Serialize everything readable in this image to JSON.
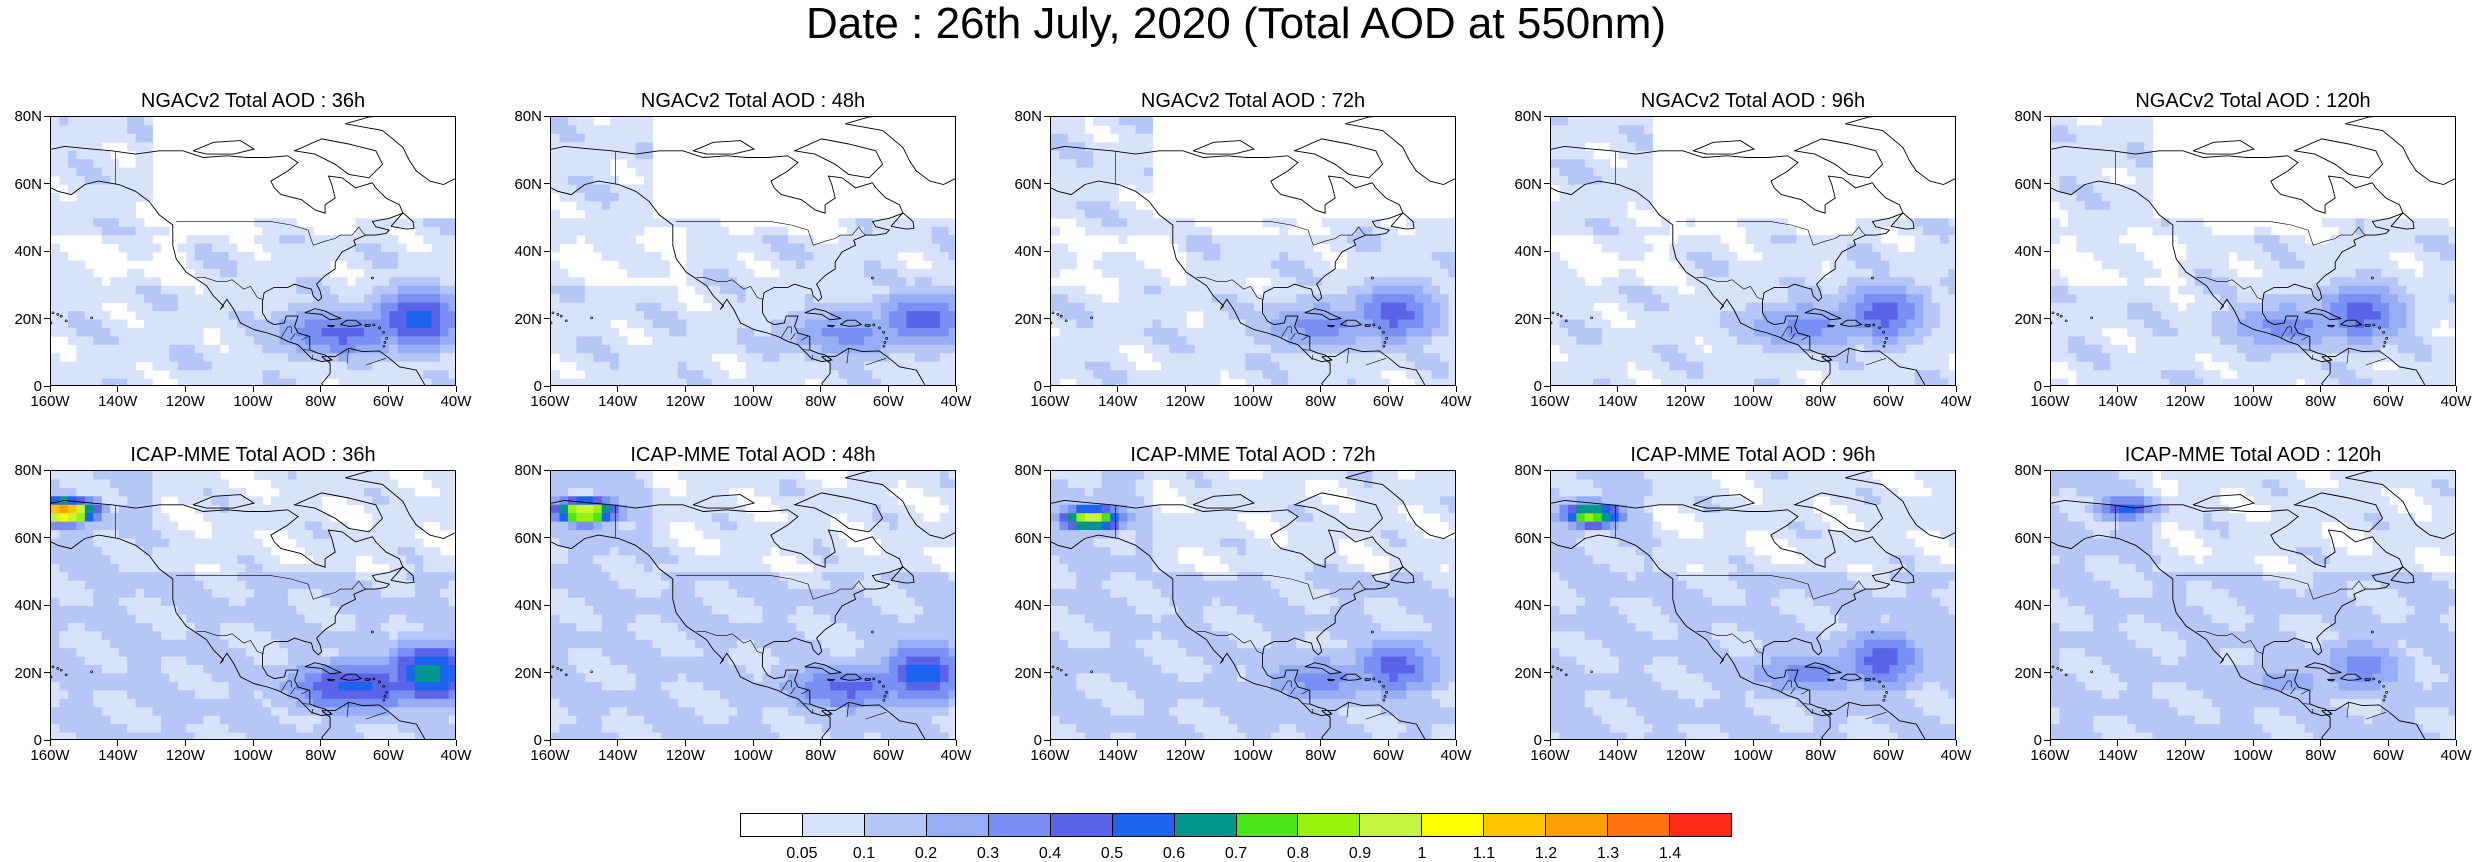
{
  "title": "Date : 26th July, 2020 (Total AOD at 550nm)",
  "panels": [
    {
      "title": "NGACv2 Total AOD : 36h",
      "model": "NGACv2",
      "lead": "36h",
      "hotspot_level": 6
    },
    {
      "title": "NGACv2 Total AOD : 48h",
      "model": "NGACv2",
      "lead": "48h",
      "hotspot_level": 5
    },
    {
      "title": "NGACv2 Total AOD : 72h",
      "model": "NGACv2",
      "lead": "72h",
      "hotspot_level": 5
    },
    {
      "title": "NGACv2 Total AOD : 96h",
      "model": "NGACv2",
      "lead": "96h",
      "hotspot_level": 5
    },
    {
      "title": "NGACv2 Total AOD : 120h",
      "model": "NGACv2",
      "lead": "120h",
      "hotspot_level": 5
    },
    {
      "title": "ICAP-MME Total AOD : 36h",
      "model": "ICAP-MME",
      "lead": "36h",
      "hotspot_level": 7
    },
    {
      "title": "ICAP-MME Total AOD : 48h",
      "model": "ICAP-MME",
      "lead": "48h",
      "hotspot_level": 6
    },
    {
      "title": "ICAP-MME Total AOD : 72h",
      "model": "ICAP-MME",
      "lead": "72h",
      "hotspot_level": 5
    },
    {
      "title": "ICAP-MME Total AOD : 96h",
      "model": "ICAP-MME",
      "lead": "96h",
      "hotspot_level": 5
    },
    {
      "title": "ICAP-MME Total AOD : 120h",
      "model": "ICAP-MME",
      "lead": "120h",
      "hotspot_level": 4
    }
  ],
  "axes": {
    "lat_labels": [
      "80N",
      "60N",
      "40N",
      "20N",
      "0"
    ],
    "lon_labels": [
      "160W",
      "140W",
      "120W",
      "100W",
      "80W",
      "60W",
      "40W"
    ],
    "lat_range": [
      0,
      80
    ],
    "lon_range": [
      -160,
      -40
    ]
  },
  "colorbar": {
    "labels": [
      "0.05",
      "0.1",
      "0.2",
      "0.3",
      "0.4",
      "0.5",
      "0.6",
      "0.7",
      "0.8",
      "0.9",
      "1",
      "1.1",
      "1.2",
      "1.3",
      "1.4"
    ],
    "colors": [
      "#ffffff",
      "#d8e2fb",
      "#b5c6f7",
      "#97aef7",
      "#7a8ff3",
      "#5b63e9",
      "#1b64f0",
      "#00968f",
      "#4be31a",
      "#97f20e",
      "#c6f53e",
      "#fefe00",
      "#ffc400",
      "#ff9f07",
      "#ff720d",
      "#ff2a18"
    ]
  }
}
